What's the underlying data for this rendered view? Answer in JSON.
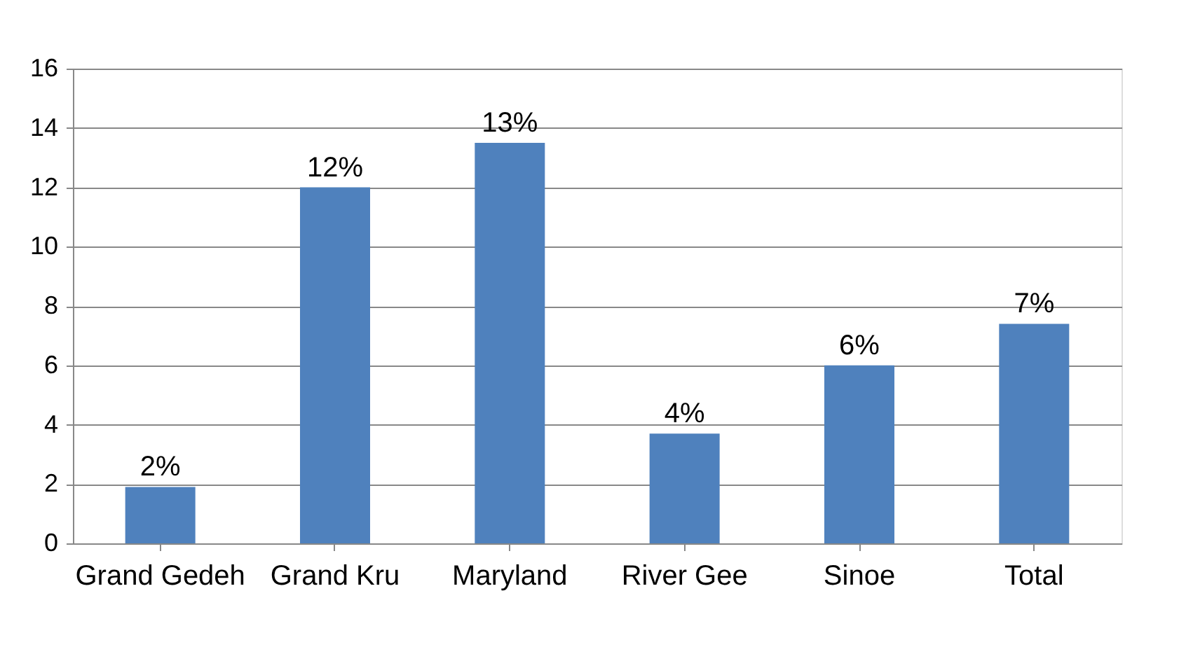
{
  "chart_data": {
    "type": "bar",
    "categories": [
      "Grand Gedeh",
      "Grand Kru",
      "Maryland",
      "River Gee",
      "Sinoe",
      "Total"
    ],
    "values": [
      1.9,
      12.0,
      13.5,
      3.7,
      6.0,
      7.4
    ],
    "value_labels": [
      "2%",
      "12%",
      "13%",
      "4%",
      "6%",
      "7%"
    ],
    "color": "#4f81bd",
    "ylim": [
      0,
      16
    ],
    "yticks": [
      0,
      2,
      4,
      6,
      8,
      10,
      12,
      14,
      16
    ],
    "grid": "y"
  }
}
